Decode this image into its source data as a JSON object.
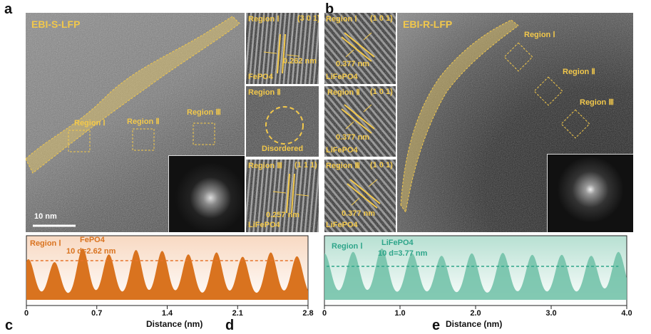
{
  "panel_letters": {
    "a": "a",
    "b": "b",
    "c": "c",
    "d": "d",
    "e": "e"
  },
  "panel_a": {
    "title": "EBI-S-LFP",
    "regions": [
      "Region Ⅰ",
      "Region Ⅱ",
      "Region Ⅲ"
    ],
    "scale_bar": "10 nm"
  },
  "panel_a_insets": [
    {
      "region": "Region Ⅰ",
      "plane": "(3 0 1)",
      "spacing": "0.262 nm",
      "phase": "FePO4"
    },
    {
      "region": "Region Ⅱ",
      "note": "Disordered"
    },
    {
      "region": "Region Ⅲ",
      "plane": "(1 1 1)",
      "spacing": "0.257 nm",
      "phase": "LiFePO4"
    }
  ],
  "panel_b_insets": [
    {
      "region": "Region Ⅰ",
      "plane": "(1 0 1)",
      "spacing": "0.377 nm",
      "phase": "LiFePO4"
    },
    {
      "region": "Region Ⅱ",
      "plane": "(1 0 1)",
      "spacing": "0.377 nm",
      "phase": "LiFePO4"
    },
    {
      "region": "Region Ⅲ",
      "plane": "(1 0 1)",
      "spacing": "0.377 nm",
      "phase": "LiFePO4"
    }
  ],
  "panel_b": {
    "title": "EBI-R-LFP",
    "regions": [
      "Region Ⅰ",
      "Region Ⅱ",
      "Region Ⅲ"
    ]
  },
  "colors": {
    "label_yellow": "#f2c84b",
    "fepo4_orange": "#d9731f",
    "lifepo4_teal": "#6dbfa6"
  },
  "chart_data": [
    {
      "type": "area",
      "region": "Region Ⅰ",
      "phase": "FePO4",
      "annotation": "10 d=2.62 nm",
      "xlabel": "Distance (nm)",
      "xlim": [
        0,
        2.8
      ],
      "xticks": [
        "0",
        "0.7",
        "1.4",
        "2.1",
        "2.8"
      ],
      "peaks_x": [
        0.02,
        0.28,
        0.56,
        0.82,
        1.09,
        1.35,
        1.61,
        1.89,
        2.15,
        2.43,
        2.69
      ],
      "peaks_rel_intensity": [
        0.78,
        0.72,
        1.0,
        0.88,
        0.97,
        0.95,
        0.88,
        0.92,
        0.83,
        0.92,
        0.84
      ],
      "color": "#d9731f"
    },
    {
      "type": "area",
      "region": "Region Ⅰ",
      "phase": "LiFePO4",
      "annotation": "10 d=3.77 nm",
      "xlabel": "Distance (nm)",
      "xlim": [
        0,
        4.0
      ],
      "xticks": [
        "0",
        "1.0",
        "2.0",
        "3.0",
        "4.0"
      ],
      "peaks_x": [
        0.0,
        0.38,
        0.76,
        1.16,
        1.55,
        1.95,
        2.36,
        2.75,
        3.14,
        3.53,
        3.89
      ],
      "peaks_rel_intensity": [
        0.9,
        0.93,
        1.0,
        0.9,
        0.85,
        0.9,
        0.91,
        0.87,
        0.87,
        0.85,
        0.93
      ],
      "color": "#6dbfa6"
    }
  ]
}
